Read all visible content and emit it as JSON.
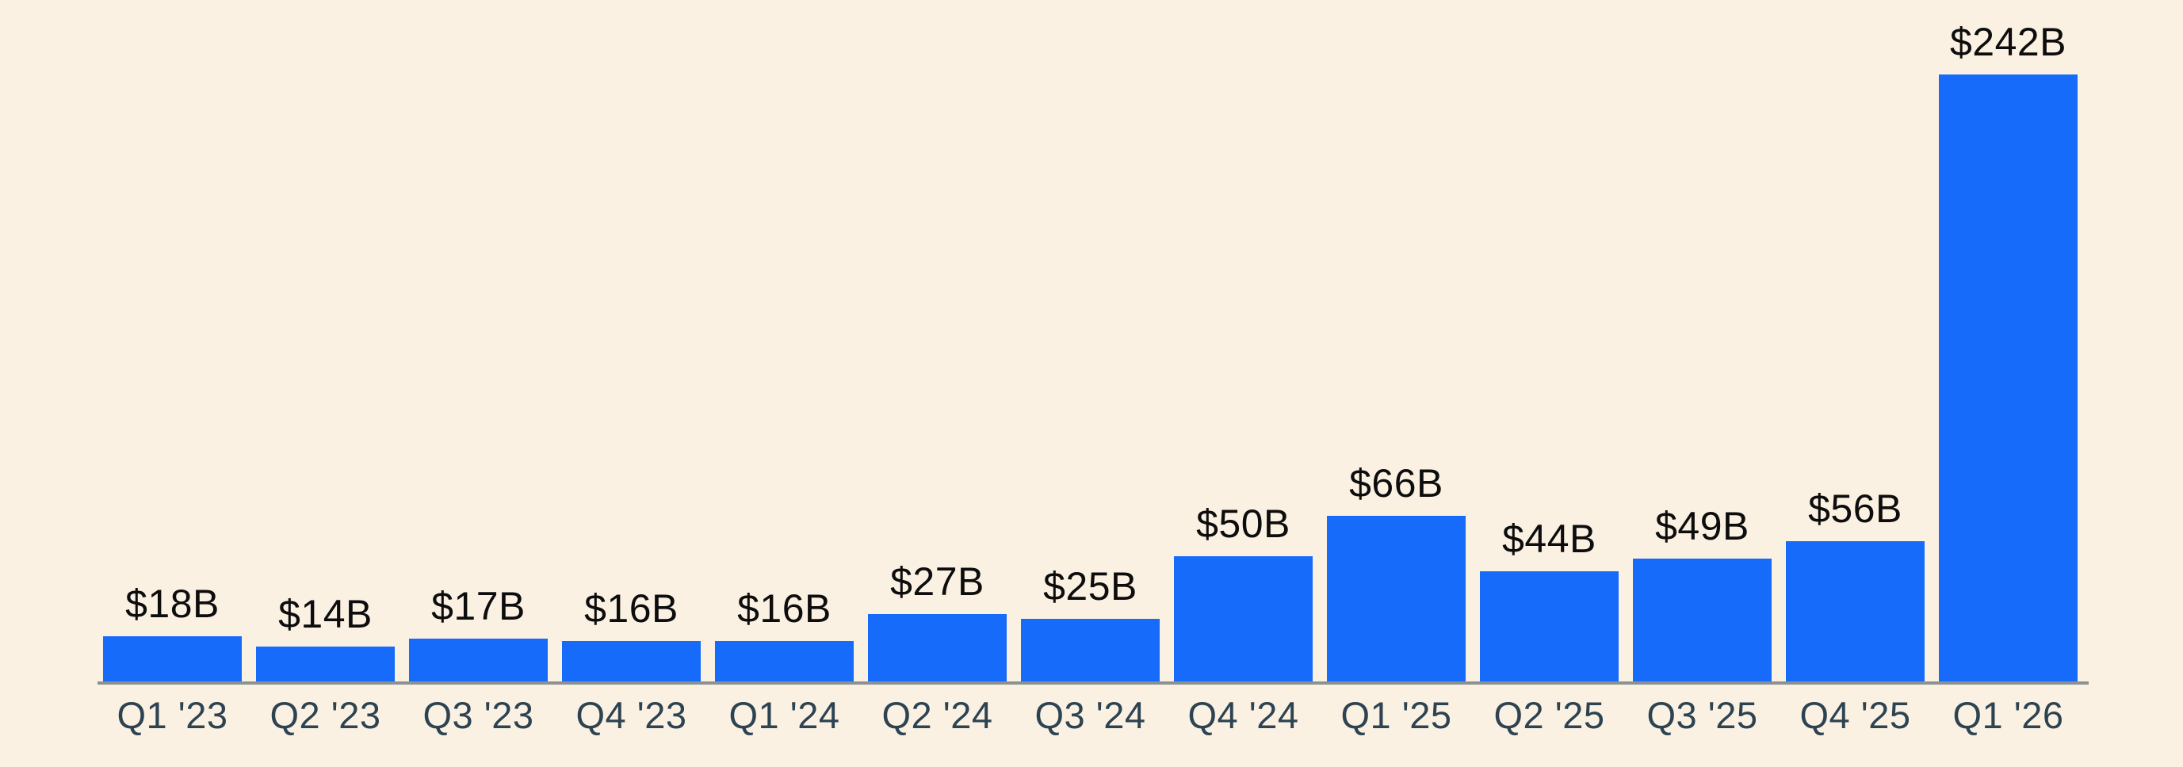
{
  "chart_data": {
    "type": "bar",
    "categories": [
      "Q1 '23",
      "Q2 '23",
      "Q3 '23",
      "Q4 '23",
      "Q1 '24",
      "Q2 '24",
      "Q3 '24",
      "Q4 '24",
      "Q1 '25",
      "Q2 '25",
      "Q3 '25",
      "Q4 '25",
      "Q1 '26"
    ],
    "values": [
      18,
      14,
      17,
      16,
      16,
      27,
      25,
      50,
      66,
      44,
      49,
      56,
      242
    ],
    "value_labels": [
      "$18B",
      "$14B",
      "$17B",
      "$16B",
      "$16B",
      "$27B",
      "$25B",
      "$50B",
      "$66B",
      "$44B",
      "$49B",
      "$56B",
      "$242B"
    ],
    "value_unit": "USD billions",
    "ylim": [
      0,
      250
    ],
    "grid": false,
    "legend": false,
    "value_labels_position": "above-bars",
    "colors": {
      "background": "#FAF1E3",
      "bar": "#176BFB",
      "value_label": "#0D0D0D",
      "x_tick_label": "#2D4351",
      "axis_line": "#8B9291"
    }
  }
}
